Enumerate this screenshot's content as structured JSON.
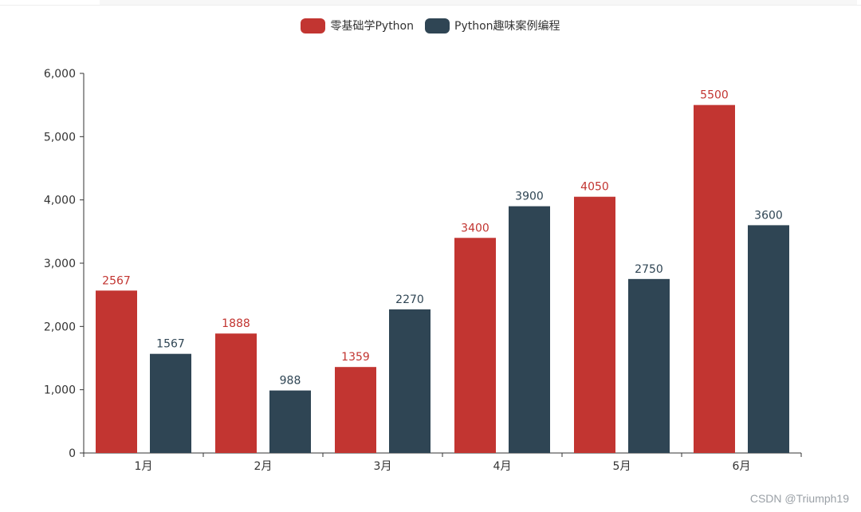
{
  "legend": [
    {
      "name": "零基础学Python",
      "color": "#c23531"
    },
    {
      "name": "Python趣味案例编程",
      "color": "#2f4554"
    }
  ],
  "chart_data": {
    "type": "bar",
    "categories": [
      "1月",
      "2月",
      "3月",
      "4月",
      "5月",
      "6月"
    ],
    "series": [
      {
        "name": "零基础学Python",
        "color": "#c23531",
        "values": [
          2567,
          1888,
          1359,
          3400,
          4050,
          5500
        ]
      },
      {
        "name": "Python趣味案例编程",
        "color": "#2f4554",
        "values": [
          1567,
          988,
          2270,
          3900,
          2750,
          3600
        ]
      }
    ],
    "ylim": [
      0,
      6000
    ],
    "yticks": [
      0,
      1000,
      2000,
      3000,
      4000,
      5000,
      6000
    ],
    "ytick_labels": [
      "0",
      "1,000",
      "2,000",
      "3,000",
      "4,000",
      "5,000",
      "6,000"
    ],
    "grid": false,
    "legend_position": "top-center"
  },
  "watermark": "CSDN @Triumph19"
}
